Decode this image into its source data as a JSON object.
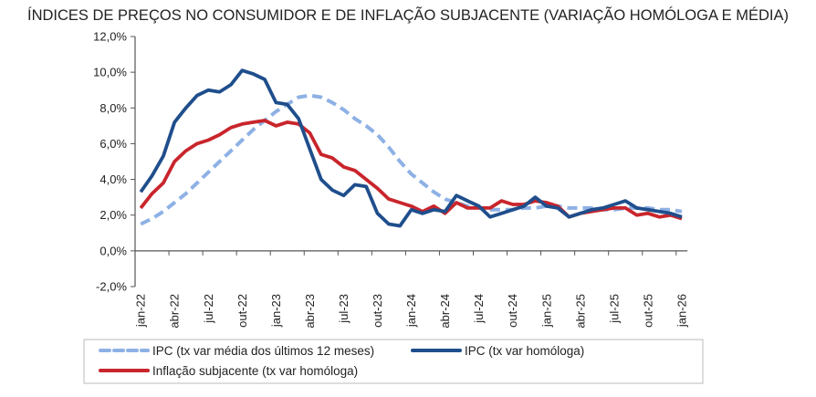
{
  "chart_data": {
    "type": "line",
    "title": "ÍNDICES DE PREÇOS NO CONSUMIDOR E DE INFLAÇÃO SUBJACENTE (VARIAÇÃO HOMÓLOGA E MÉDIA)",
    "xlabel": "",
    "ylabel": "",
    "ylim": [
      -2,
      12
    ],
    "yticks": [
      "-2,0%",
      "0,0%",
      "2,0%",
      "4,0%",
      "6,0%",
      "8,0%",
      "10,0%",
      "12,0%"
    ],
    "ytick_values": [
      -2,
      0,
      2,
      4,
      6,
      8,
      10,
      12
    ],
    "x_start": "jan-22",
    "x_end": "jan-26",
    "xtick_labels": [
      "jan-22",
      "abr-22",
      "jul-22",
      "out-22",
      "jan-23",
      "abr-23",
      "jul-23",
      "out-23",
      "jan-24",
      "abr-24",
      "jul-24",
      "out-24",
      "jan-25",
      "abr-25",
      "jul-25",
      "out-25",
      "jan-26"
    ],
    "grid": false,
    "legend_placement": "bottom",
    "series": [
      {
        "name": "IPC (tx var média dos últimos 12 meses)",
        "color": "#8eb1e5",
        "style": "dashed",
        "values": [
          1.5,
          1.8,
          2.2,
          2.7,
          3.2,
          3.8,
          4.4,
          5.0,
          5.6,
          6.2,
          6.8,
          7.3,
          7.8,
          8.2,
          8.6,
          8.7,
          8.6,
          8.3,
          7.9,
          7.4,
          7.0,
          6.5,
          5.8,
          5.0,
          4.3,
          3.8,
          3.3,
          2.9,
          2.7,
          2.5,
          2.4,
          2.3,
          2.3,
          2.3,
          2.4,
          2.4,
          2.5,
          2.5,
          2.4,
          2.4,
          2.4,
          2.3,
          2.3,
          2.4,
          2.4,
          2.4,
          2.3,
          2.3,
          2.2
        ]
      },
      {
        "name": "IPC (tx var homóloga)",
        "color": "#1f4e8c",
        "style": "solid",
        "values": [
          3.3,
          4.2,
          5.3,
          7.2,
          8.0,
          8.7,
          9.0,
          8.9,
          9.3,
          10.1,
          9.9,
          9.6,
          8.3,
          8.2,
          7.4,
          5.7,
          4.0,
          3.4,
          3.1,
          3.7,
          3.6,
          2.1,
          1.5,
          1.4,
          2.3,
          2.1,
          2.3,
          2.2,
          3.1,
          2.8,
          2.5,
          1.9,
          2.1,
          2.3,
          2.5,
          3.0,
          2.5,
          2.4,
          1.9,
          2.1,
          2.3,
          2.4,
          2.6,
          2.8,
          2.4,
          2.3,
          2.2,
          2.1,
          1.9
        ]
      },
      {
        "name": "Inflação subjacente (tx var homóloga)",
        "color": "#c9252c",
        "style": "solid",
        "values": [
          2.4,
          3.2,
          3.8,
          5.0,
          5.6,
          6.0,
          6.2,
          6.5,
          6.9,
          7.1,
          7.2,
          7.3,
          7.0,
          7.2,
          7.1,
          6.6,
          5.4,
          5.2,
          4.7,
          4.5,
          4.0,
          3.5,
          2.9,
          2.7,
          2.5,
          2.2,
          2.5,
          2.1,
          2.7,
          2.4,
          2.4,
          2.4,
          2.8,
          2.6,
          2.6,
          2.8,
          2.7,
          2.5,
          1.9,
          2.1,
          2.2,
          2.3,
          2.4,
          2.4,
          2.0,
          2.1,
          1.9,
          2.0,
          1.8
        ]
      }
    ]
  }
}
